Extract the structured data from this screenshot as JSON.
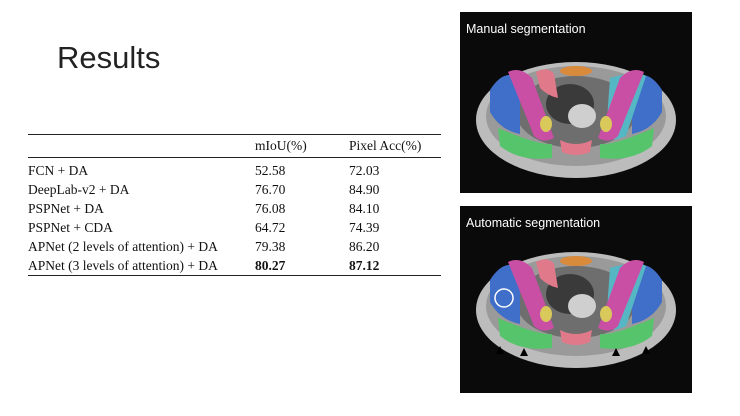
{
  "slide": {
    "title": "Results"
  },
  "table": {
    "columns": [
      "",
      "mIoU(%)",
      "Pixel Acc(%)"
    ],
    "rows": [
      {
        "method": "FCN + DA",
        "miou": "52.58",
        "pixel_acc": "72.03"
      },
      {
        "method": "DeepLab-v2 + DA",
        "miou": "76.70",
        "pixel_acc": "84.90"
      },
      {
        "method": "PSPNet + DA",
        "miou": "76.08",
        "pixel_acc": "84.10"
      },
      {
        "method": "PSPNet + CDA",
        "miou": "64.72",
        "pixel_acc": "74.39"
      },
      {
        "method": "APNet (2 levels of attention) + DA",
        "miou": "79.38",
        "pixel_acc": "86.20"
      },
      {
        "method": "APNet (3 levels of attention) + DA",
        "miou": "80.27",
        "pixel_acc": "87.12"
      }
    ]
  },
  "images": {
    "manual": {
      "label": "Manual segmentation"
    },
    "automatic": {
      "label": "Automatic segmentation"
    }
  },
  "colors": {
    "panel_bg": "#0a0a0a",
    "blue": "#3f6fc9",
    "magenta": "#c94fa5",
    "green": "#56c46a",
    "pink": "#e07a8a",
    "yellow": "#d9c95a",
    "orange": "#d98a3a"
  }
}
